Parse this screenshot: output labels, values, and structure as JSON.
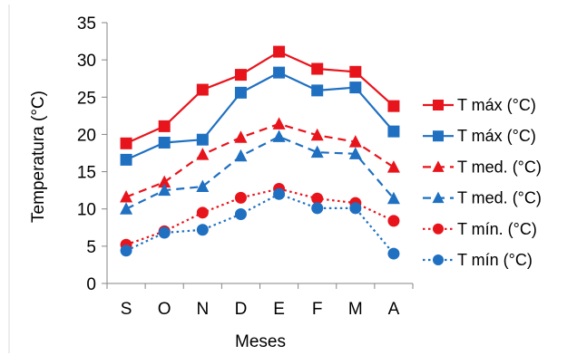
{
  "chart_data": {
    "type": "line",
    "title": "",
    "xlabel": "Meses",
    "ylabel": "Temperatura (°C)",
    "ylim": [
      0,
      35
    ],
    "yticks": [
      0,
      5,
      10,
      15,
      20,
      25,
      30,
      35
    ],
    "categories": [
      "S",
      "O",
      "N",
      "D",
      "E",
      "F",
      "M",
      "A"
    ],
    "grid": false,
    "legend_position": "right",
    "series": [
      {
        "name": "T máx (°C)",
        "values": [
          18.8,
          21.1,
          26.0,
          28.0,
          31.1,
          28.8,
          28.4,
          23.8
        ],
        "color": "#e8141c",
        "marker": "square",
        "line_style": "solid"
      },
      {
        "name": "T máx (°C)",
        "values": [
          16.6,
          18.9,
          19.3,
          25.6,
          28.3,
          25.9,
          26.3,
          20.4
        ],
        "color": "#1f70c1",
        "marker": "square",
        "line_style": "solid"
      },
      {
        "name": "T med. (°C)",
        "values": [
          11.6,
          13.6,
          17.3,
          19.6,
          21.4,
          19.9,
          19.0,
          15.6
        ],
        "color": "#e8141c",
        "marker": "triangle",
        "line_style": "dashed"
      },
      {
        "name": "T med. (°C)",
        "values": [
          10.0,
          12.5,
          13.0,
          17.1,
          19.7,
          17.6,
          17.4,
          11.4
        ],
        "color": "#1f70c1",
        "marker": "triangle",
        "line_style": "dashed"
      },
      {
        "name": "T mín. (°C)",
        "values": [
          5.2,
          7.0,
          9.5,
          11.5,
          12.7,
          11.4,
          10.8,
          8.4
        ],
        "color": "#e8141c",
        "marker": "circle",
        "line_style": "dotted"
      },
      {
        "name": "T mín (°C)",
        "values": [
          4.4,
          6.8,
          7.2,
          9.3,
          12.0,
          10.1,
          10.1,
          4.0
        ],
        "color": "#1f70c1",
        "marker": "circle",
        "line_style": "dotted"
      }
    ]
  }
}
